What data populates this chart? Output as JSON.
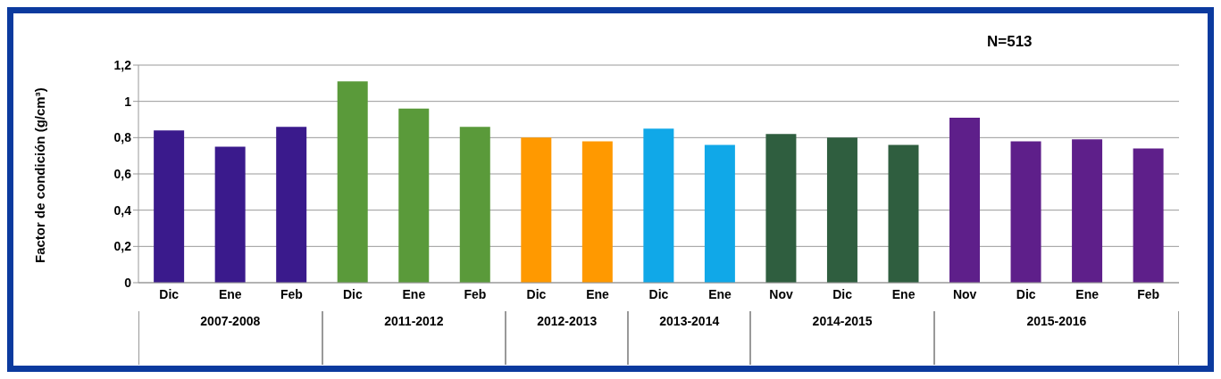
{
  "chart_data": {
    "type": "bar",
    "title": "N=513",
    "ylabel": "Factor de  condición (g/cm³)",
    "categories": [
      "Dic",
      "Ene",
      "Feb",
      "Dic",
      "Ene",
      "Feb",
      "Dic",
      "Ene",
      "Dic",
      "Ene",
      "Nov",
      "Dic",
      "Ene",
      "Nov",
      "Dic",
      "Ene",
      "Feb"
    ],
    "values": [
      0.84,
      0.75,
      0.86,
      1.11,
      0.96,
      0.86,
      0.8,
      0.78,
      0.85,
      0.76,
      0.82,
      0.8,
      0.76,
      0.91,
      0.78,
      0.79,
      0.74
    ],
    "colors": [
      "#3a1a8c",
      "#3a1a8c",
      "#3a1a8c",
      "#5a9a3a",
      "#5a9a3a",
      "#5a9a3a",
      "#ff9900",
      "#ff9900",
      "#10a8e8",
      "#10a8e8",
      "#2f5e3f",
      "#2f5e3f",
      "#2f5e3f",
      "#5e1f8a",
      "#5e1f8a",
      "#5e1f8a",
      "#5e1f8a"
    ],
    "annotations": [
      "2007-2008",
      "2011-2012",
      "2012-2013",
      "2013-2014",
      "2014-2015",
      "2015-2016"
    ],
    "ylim": [
      0,
      1.2
    ],
    "yticks": [
      0,
      {
        "value": 0.2,
        "label": "0,2"
      },
      {
        "value": 0.4,
        "label": "0,4"
      },
      {
        "value": 0.6,
        "label": "0,6"
      },
      {
        "value": 0.8,
        "label": "0,8"
      },
      1,
      {
        "value": 1.2,
        "label": "1,2"
      }
    ],
    "grid": "y"
  }
}
